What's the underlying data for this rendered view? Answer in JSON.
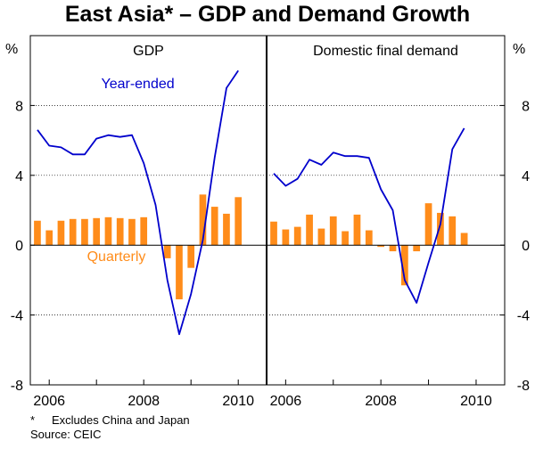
{
  "title": "East Asia* – GDP and Demand Growth",
  "footnote_mark": "*",
  "footnote_text": "Excludes China and Japan",
  "source": "Source: CEIC",
  "colors": {
    "line": "#0000cc",
    "bar": "#ff8c1a",
    "axis": "#000000",
    "grid": "#000000"
  },
  "chart_data": [
    {
      "type": "bar+line",
      "panel_title": "GDP",
      "ylabel_left": "%",
      "ylabel_right": "%",
      "ylim": [
        -8,
        12
      ],
      "yticks": [
        -8,
        -4,
        0,
        4,
        8
      ],
      "xlim": [
        2005.6,
        2010.6
      ],
      "xticks": [
        2006,
        2008,
        2010
      ],
      "annotations": [
        {
          "text": "Year-ended",
          "series": "Year-ended",
          "at_x": 2007.1,
          "at_y": 9.0
        },
        {
          "text": "Quarterly",
          "series": "Quarterly",
          "at_x": 2006.8,
          "at_y": -0.9
        }
      ],
      "series": [
        {
          "name": "Quarterly",
          "type": "bar",
          "x": [
            2005.75,
            2006.0,
            2006.25,
            2006.5,
            2006.75,
            2007.0,
            2007.25,
            2007.5,
            2007.75,
            2008.0,
            2008.25,
            2008.5,
            2008.75,
            2009.0,
            2009.25,
            2009.5,
            2009.75,
            2010.0
          ],
          "values": [
            1.4,
            0.85,
            1.4,
            1.5,
            1.5,
            1.55,
            1.6,
            1.55,
            1.5,
            1.6,
            null,
            -0.75,
            -3.1,
            -1.3,
            2.9,
            2.2,
            1.8,
            2.75
          ]
        },
        {
          "name": "Year-ended",
          "type": "line",
          "x": [
            2005.75,
            2006.0,
            2006.25,
            2006.5,
            2006.75,
            2007.0,
            2007.25,
            2007.5,
            2007.75,
            2008.0,
            2008.25,
            2008.5,
            2008.75,
            2009.0,
            2009.25,
            2009.5,
            2009.75,
            2010.0
          ],
          "values": [
            6.6,
            5.7,
            5.6,
            5.2,
            5.2,
            6.1,
            6.3,
            6.2,
            6.3,
            4.7,
            2.3,
            -2.0,
            -5.1,
            -2.8,
            0.3,
            5.0,
            9.0,
            10.0
          ]
        }
      ]
    },
    {
      "type": "bar+line",
      "panel_title": "Domestic final demand",
      "ylabel_left": "%",
      "ylabel_right": "%",
      "ylim": [
        -8,
        12
      ],
      "yticks": [
        -8,
        -4,
        0,
        4,
        8
      ],
      "xlim": [
        2005.6,
        2010.6
      ],
      "xticks": [
        2006,
        2008,
        2010
      ],
      "series": [
        {
          "name": "Quarterly",
          "type": "bar",
          "x": [
            2005.75,
            2006.0,
            2006.25,
            2006.5,
            2006.75,
            2007.0,
            2007.25,
            2007.5,
            2007.75,
            2008.0,
            2008.25,
            2008.5,
            2008.75,
            2009.0,
            2009.25,
            2009.5,
            2009.75,
            2010.0
          ],
          "values": [
            1.35,
            0.9,
            1.05,
            1.75,
            0.95,
            1.65,
            0.8,
            1.75,
            0.85,
            -0.1,
            -0.35,
            -2.3,
            -0.35,
            2.4,
            1.85,
            1.65,
            0.7,
            null
          ]
        },
        {
          "name": "Year-ended",
          "type": "line",
          "x": [
            2005.75,
            2006.0,
            2006.25,
            2006.5,
            2006.75,
            2007.0,
            2007.25,
            2007.5,
            2007.75,
            2008.0,
            2008.25,
            2008.5,
            2008.75,
            2009.0,
            2009.25,
            2009.5,
            2009.75,
            2010.0
          ],
          "values": [
            4.1,
            3.4,
            3.8,
            4.9,
            4.6,
            5.3,
            5.1,
            5.1,
            5.0,
            3.2,
            2.0,
            -2.0,
            -3.3,
            -1.0,
            1.2,
            5.5,
            6.7,
            null
          ]
        }
      ]
    }
  ]
}
